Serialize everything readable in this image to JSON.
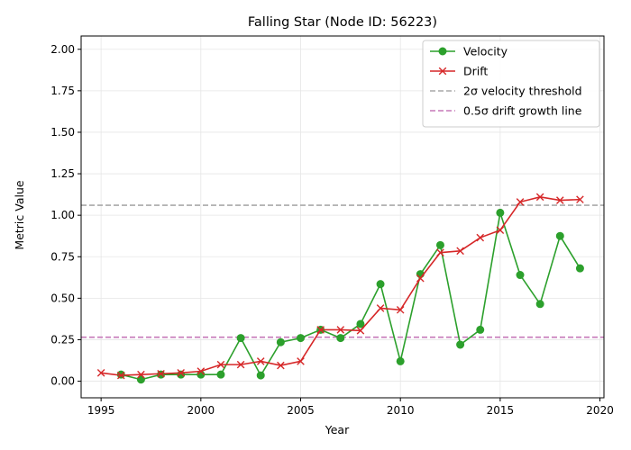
{
  "chart_data": {
    "type": "line",
    "title": "Falling Star (Node ID: 56223)",
    "xlabel": "Year",
    "ylabel": "Metric Value",
    "xlim": [
      1994,
      2020.2
    ],
    "ylim": [
      -0.1,
      2.08
    ],
    "xticks": [
      1995,
      2000,
      2005,
      2010,
      2015,
      2020
    ],
    "yticks": [
      0.0,
      0.25,
      0.5,
      0.75,
      1.0,
      1.25,
      1.5,
      1.75,
      2.0
    ],
    "xtick_labels": [
      "1995",
      "2000",
      "2005",
      "2010",
      "2015",
      "2020"
    ],
    "ytick_labels": [
      "0.00",
      "0.25",
      "0.50",
      "0.75",
      "1.00",
      "1.25",
      "1.50",
      "1.75",
      "2.00"
    ],
    "grid": true,
    "legend_position": "top-right",
    "series": [
      {
        "name": "Velocity",
        "color": "#2ca02c",
        "marker": "circle",
        "x": [
          1996,
          1997,
          1998,
          1999,
          2000,
          2001,
          2002,
          2003,
          2004,
          2005,
          2006,
          2007,
          2008,
          2009,
          2010,
          2011,
          2012,
          2013,
          2014,
          2015,
          2016,
          2017,
          2018,
          2019
        ],
        "values": [
          0.04,
          0.01,
          0.04,
          0.04,
          0.04,
          0.04,
          0.26,
          0.035,
          0.235,
          0.26,
          0.31,
          0.26,
          0.345,
          0.585,
          0.12,
          0.645,
          0.82,
          0.22,
          0.31,
          1.015,
          0.64,
          0.465,
          0.875,
          0.68
        ]
      },
      {
        "name": "Drift",
        "color": "#d62728",
        "marker": "x",
        "x": [
          1995,
          1996,
          1997,
          1998,
          1999,
          2000,
          2001,
          2002,
          2003,
          2004,
          2005,
          2006,
          2007,
          2008,
          2009,
          2010,
          2011,
          2012,
          2013,
          2014,
          2015,
          2016,
          2017,
          2018,
          2019
        ],
        "values": [
          0.05,
          0.035,
          0.04,
          0.045,
          0.05,
          0.06,
          0.1,
          0.1,
          0.12,
          0.095,
          0.12,
          0.31,
          0.31,
          0.305,
          0.44,
          0.43,
          0.62,
          0.775,
          0.785,
          0.865,
          0.91,
          1.08,
          1.11,
          1.09,
          1.095
        ]
      }
    ],
    "reference_lines": [
      {
        "name": "2σ velocity threshold",
        "value": 1.06,
        "color": "#a9a9a9",
        "style": "dashed"
      },
      {
        "name": "0.5σ drift growth line",
        "value": 0.265,
        "color": "#c678b8",
        "style": "dashed"
      }
    ]
  }
}
